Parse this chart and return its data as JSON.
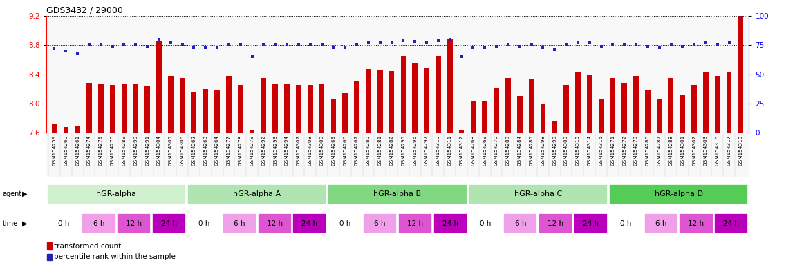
{
  "title": "GDS3432 / 29000",
  "xlabels": [
    "GSM154259",
    "GSM154260",
    "GSM154261",
    "GSM154274",
    "GSM154275",
    "GSM154276",
    "GSM154289",
    "GSM154290",
    "GSM154291",
    "GSM154304",
    "GSM154305",
    "GSM154306",
    "GSM154262",
    "GSM154263",
    "GSM154264",
    "GSM154277",
    "GSM154278",
    "GSM154279",
    "GSM154292",
    "GSM154293",
    "GSM154294",
    "GSM154307",
    "GSM154308",
    "GSM154309",
    "GSM154265",
    "GSM154266",
    "GSM154267",
    "GSM154280",
    "GSM154281",
    "GSM154282",
    "GSM154295",
    "GSM154296",
    "GSM154297",
    "GSM154310",
    "GSM154311",
    "GSM154312",
    "GSM154268",
    "GSM154269",
    "GSM154270",
    "GSM154283",
    "GSM154284",
    "GSM154285",
    "GSM154298",
    "GSM154299",
    "GSM154300",
    "GSM154313",
    "GSM154314",
    "GSM154315",
    "GSM154271",
    "GSM154272",
    "GSM154273",
    "GSM154286",
    "GSM154287",
    "GSM154288",
    "GSM154301",
    "GSM154302",
    "GSM154303",
    "GSM154316",
    "GSM154317",
    "GSM154318"
  ],
  "red_values": [
    7.72,
    7.68,
    7.69,
    8.28,
    8.27,
    8.25,
    8.27,
    8.27,
    8.24,
    8.85,
    8.38,
    8.35,
    8.15,
    8.2,
    8.18,
    8.38,
    8.25,
    7.64,
    8.35,
    8.26,
    8.27,
    8.25,
    8.25,
    8.27,
    8.05,
    8.14,
    8.3,
    8.47,
    8.45,
    8.44,
    8.65,
    8.55,
    8.48,
    8.65,
    8.88,
    7.63,
    8.03,
    8.03,
    8.22,
    8.35,
    8.1,
    8.33,
    8.0,
    7.75,
    8.25,
    8.42,
    8.4,
    8.06,
    8.35,
    8.28,
    8.38,
    8.18,
    8.05,
    8.35,
    8.12,
    8.25,
    8.42,
    8.38,
    8.43,
    9.2
  ],
  "blue_values": [
    72,
    70,
    68,
    76,
    75,
    74,
    75,
    75,
    74,
    80,
    77,
    76,
    73,
    73,
    73,
    76,
    75,
    65,
    76,
    75,
    75,
    75,
    75,
    75,
    73,
    73,
    75,
    77,
    77,
    77,
    79,
    78,
    77,
    79,
    80,
    65,
    73,
    73,
    74,
    76,
    74,
    76,
    73,
    71,
    75,
    77,
    77,
    74,
    76,
    75,
    76,
    74,
    73,
    76,
    74,
    75,
    77,
    76,
    77,
    100
  ],
  "ylim_left": [
    7.6,
    9.2
  ],
  "ylim_right": [
    0,
    100
  ],
  "yticks_left": [
    7.6,
    8.0,
    8.4,
    8.8,
    9.2
  ],
  "yticks_right": [
    0,
    25,
    50,
    75,
    100
  ],
  "agent_groups": [
    {
      "label": "hGR-alpha",
      "start": 0,
      "end": 12,
      "color": "#d0f0d0"
    },
    {
      "label": "hGR-alpha A",
      "start": 12,
      "end": 24,
      "color": "#b0e4b0"
    },
    {
      "label": "hGR-alpha B",
      "start": 24,
      "end": 36,
      "color": "#80d880"
    },
    {
      "label": "hGR-alpha C",
      "start": 36,
      "end": 48,
      "color": "#b0e4b0"
    },
    {
      "label": "hGR-alpha D",
      "start": 48,
      "end": 60,
      "color": "#55cc55"
    }
  ],
  "time_labels": [
    "0 h",
    "6 h",
    "12 h",
    "24 h"
  ],
  "time_colors": [
    "#ffffff",
    "#f0a0e8",
    "#dd55d0",
    "#bb00bb"
  ],
  "bar_color": "#cc0000",
  "dot_color": "#2222bb",
  "plot_bg": "#f8f8f8",
  "legend_red": "transformed count",
  "legend_blue": "percentile rank within the sample",
  "fig_bg": "#ffffff"
}
